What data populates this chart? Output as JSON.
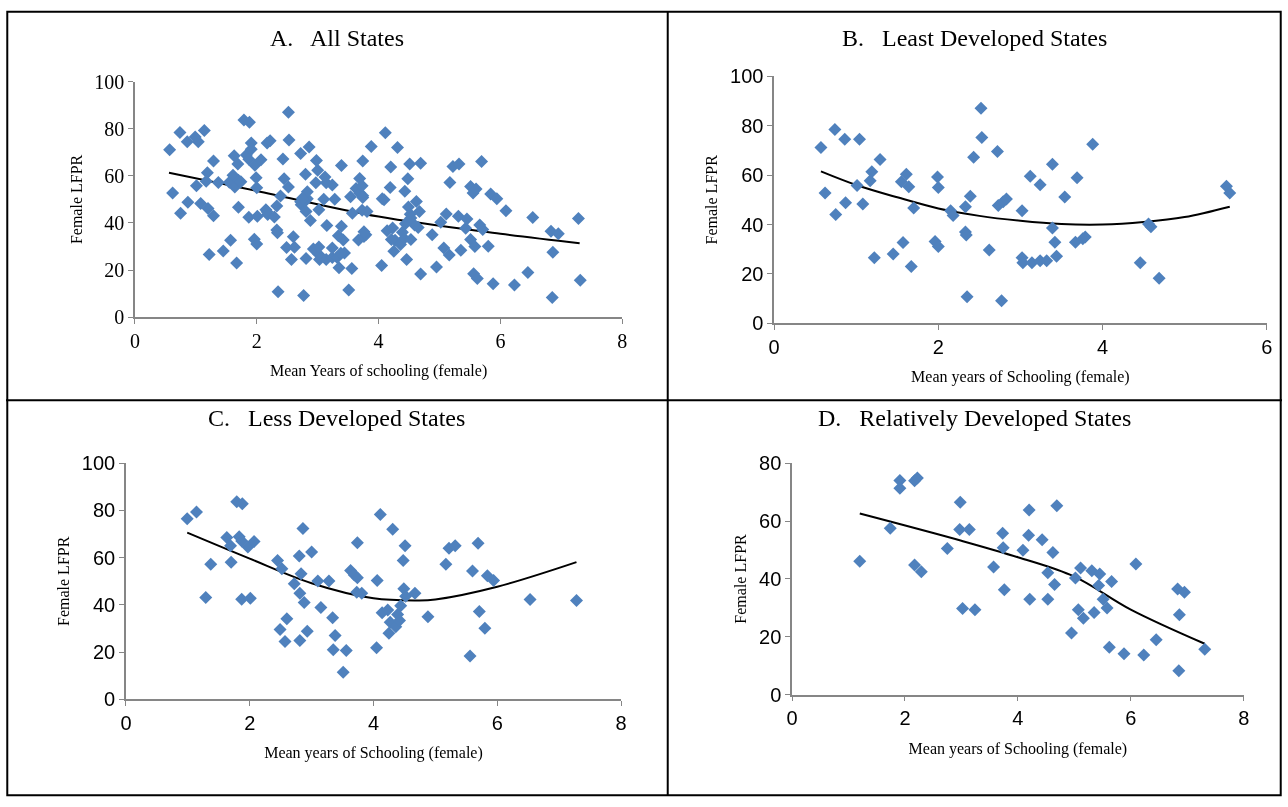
{
  "chart_data": [
    {
      "type": "scatter",
      "title": "A.   All States",
      "xlabel": "Mean Years of schooling (female)",
      "ylabel": "Female LFPR",
      "xlim": [
        0,
        8
      ],
      "xticks": [
        0,
        2,
        4,
        6,
        8
      ],
      "ylim": [
        0,
        100
      ],
      "yticks": [
        0,
        20,
        40,
        60,
        80,
        100
      ],
      "grid": false,
      "legend": false,
      "series": [
        {
          "color": "#4f81bd",
          "marker": "diamond",
          "x": [
            0.57,
            0.62,
            0.74,
            0.75,
            0.86,
            0.87,
            1.01,
            1.04,
            1.08,
            1.19,
            1.17,
            1.22,
            1.29,
            1.45,
            1.55,
            1.57,
            1.61,
            1.64,
            1.67,
            1.7,
            1.96,
            1.99,
            2.0,
            2.0,
            2.15,
            2.18,
            2.33,
            2.33,
            2.34,
            2.35,
            2.39,
            2.43,
            2.52,
            2.53,
            2.62,
            2.72,
            2.73,
            2.77,
            2.79,
            2.83,
            3.02,
            3.02,
            3.03,
            3.12,
            3.14,
            3.24,
            3.24,
            3.32,
            3.39,
            3.39,
            3.42,
            3.44,
            3.54,
            3.67,
            3.69,
            3.76,
            3.79,
            3.88,
            4.46,
            4.59,
            4.69,
            5.51,
            5.55,
            0.99,
            1.14,
            1.29,
            1.37,
            1.63,
            1.69,
            1.7,
            1.79,
            1.83,
            1.87,
            1.88,
            1.87,
            1.97,
            2.01,
            2.07,
            2.45,
            2.52,
            2.49,
            2.6,
            2.57,
            2.72,
            2.8,
            2.81,
            2.83,
            2.81,
            2.88,
            2.86,
            2.93,
            3.0,
            3.1,
            3.15,
            3.28,
            3.34,
            3.38,
            3.35,
            3.56,
            3.51,
            3.63,
            3.69,
            3.74,
            3.74,
            3.73,
            3.81,
            4.05,
            4.06,
            4.11,
            4.14,
            4.23,
            4.25,
            4.27,
            4.31,
            4.36,
            4.39,
            4.42,
            4.44,
            4.48,
            4.51,
            4.49,
            4.52,
            4.67,
            4.88,
            5.17,
            5.22,
            5.32,
            5.6,
            5.56,
            5.69,
            5.71,
            5.8,
            5.84,
            5.94,
            6.53,
            7.28,
            1.2,
            1.74,
            1.91,
            1.91,
            2.17,
            2.22,
            2.17,
            2.29,
            2.75,
            2.98,
            2.97,
            3.02,
            3.14,
            3.24,
            3.57,
            3.73,
            3.74,
            3.76,
            4.09,
            4.2,
            4.19,
            4.21,
            4.43,
            4.53,
            4.53,
            4.62,
            4.65,
            4.69,
            4.95,
            5.02,
            5.11,
            5.07,
            5.16,
            5.31,
            5.35,
            5.43,
            5.45,
            5.51,
            5.58,
            5.66,
            5.62,
            5.88,
            6.09,
            6.23,
            6.45,
            6.83,
            6.95,
            6.86,
            6.85,
            7.31
          ],
          "values": [
            71.1,
            52.7,
            78.4,
            44.1,
            74.5,
            48.8,
            55.8,
            74.5,
            48.3,
            61.3,
            57.7,
            26.6,
            66.3,
            28.1,
            57.3,
            32.7,
            60.3,
            55.3,
            23.0,
            46.7,
            33.1,
            59.2,
            55.0,
            31.1,
            45.6,
            43.6,
            47.2,
            37.0,
            35.8,
            10.8,
            51.4,
            67.2,
            87.0,
            75.2,
            29.7,
            69.5,
            47.7,
            9.2,
            49.2,
            50.3,
            45.6,
            26.6,
            24.5,
            59.5,
            24.5,
            56.1,
            25.3,
            25.3,
            64.4,
            38.6,
            32.8,
            27.2,
            51.1,
            32.8,
            58.9,
            34.2,
            35.0,
            72.5,
            24.5,
            39.1,
            18.3,
            55.5,
            52.7,
            76.5,
            79.3,
            43.1,
            57.2,
            68.5,
            65.0,
            58.1,
            83.7,
            68.9,
            42.4,
            82.8,
            67.1,
            64.5,
            42.8,
            66.8,
            58.8,
            55.3,
            29.6,
            34.1,
            24.5,
            49.0,
            60.7,
            24.9,
            53.2,
            44.9,
            41.0,
            72.3,
            28.9,
            62.4,
            50.1,
            38.9,
            50.1,
            34.6,
            27.1,
            21.0,
            20.7,
            11.5,
            54.6,
            52.7,
            51.5,
            66.3,
            45.4,
            44.9,
            21.9,
            50.3,
            78.3,
            36.7,
            37.9,
            28.0,
            32.7,
            72.0,
            30.8,
            36.0,
            33.4,
            39.7,
            58.8,
            65.0,
            46.8,
            43.7,
            44.9,
            35.0,
            57.2,
            64.0,
            65.0,
            54.4,
            18.4,
            66.1,
            37.2,
            30.1,
            52.3,
            50.3,
            42.3,
            41.9,
            46.1,
            57.5,
            74.0,
            71.3,
            73.9,
            74.9,
            44.8,
            42.5,
            50.5,
            66.5,
            57.1,
            29.8,
            57.1,
            29.4,
            44.1,
            55.8,
            50.8,
            36.3,
            49.9,
            63.8,
            55.1,
            33.0,
            53.5,
            42.1,
            33.0,
            49.1,
            38.1,
            65.3,
            21.3,
            40.3,
            43.8,
            29.4,
            26.4,
            42.8,
            28.4,
            37.7,
            41.7,
            33.0,
            30.0,
            39.1,
            16.4,
            14.2,
            45.2,
            13.7,
            19.0,
            36.5,
            35.4,
            27.6,
            8.3,
            15.7
          ]
        },
        {
          "type": "line",
          "color": "#000000",
          "x": [
            0.56,
            2,
            4,
            6,
            7.3
          ],
          "values": [
            61.3,
            53.6,
            42.7,
            35.4,
            31.4
          ]
        }
      ]
    },
    {
      "type": "scatter",
      "title": "B.   Least Developed States",
      "xlabel": "Mean years of Schooling (female)",
      "ylabel": "Female LFPR",
      "xlim": [
        0,
        6
      ],
      "xticks": [
        0,
        2,
        4,
        6
      ],
      "ylim": [
        0,
        100
      ],
      "yticks": [
        0,
        20,
        40,
        60,
        80,
        100
      ],
      "grid": false,
      "legend": false,
      "series": [
        {
          "color": "#4f81bd",
          "marker": "diamond",
          "x": [
            0.57,
            0.62,
            0.74,
            0.75,
            0.86,
            0.87,
            1.01,
            1.04,
            1.08,
            1.19,
            1.17,
            1.22,
            1.29,
            1.45,
            1.55,
            1.57,
            1.61,
            1.64,
            1.67,
            1.7,
            1.96,
            1.99,
            2.0,
            2.0,
            2.15,
            2.18,
            2.33,
            2.33,
            2.34,
            2.35,
            2.39,
            2.43,
            2.52,
            2.53,
            2.62,
            2.72,
            2.73,
            2.77,
            2.79,
            2.83,
            3.02,
            3.02,
            3.03,
            3.12,
            3.14,
            3.24,
            3.24,
            3.32,
            3.39,
            3.39,
            3.42,
            3.44,
            3.54,
            3.67,
            3.69,
            3.76,
            3.79,
            3.88,
            4.46,
            4.56,
            4.59,
            4.69,
            5.51,
            5.55
          ],
          "values": [
            71.1,
            52.7,
            78.4,
            44.1,
            74.5,
            48.8,
            55.8,
            74.5,
            48.3,
            61.3,
            57.7,
            26.6,
            66.3,
            28.1,
            57.3,
            32.7,
            60.3,
            55.3,
            23.0,
            46.7,
            33.1,
            59.2,
            55.0,
            31.1,
            45.6,
            43.6,
            47.2,
            37.0,
            35.8,
            10.8,
            51.4,
            67.2,
            87.0,
            75.2,
            29.7,
            69.5,
            47.7,
            9.2,
            49.2,
            50.3,
            45.6,
            26.6,
            24.5,
            59.5,
            24.5,
            56.1,
            25.3,
            25.3,
            64.4,
            38.6,
            32.8,
            27.2,
            51.1,
            32.8,
            58.9,
            34.2,
            35.0,
            72.5,
            24.5,
            40.2,
            39.1,
            18.3,
            55.5,
            52.7
          ]
        },
        {
          "type": "line",
          "color": "#000000",
          "x": [
            0.57,
            1,
            1.5,
            2,
            2.5,
            3,
            3.5,
            4,
            4.5,
            5,
            5.55
          ],
          "values": [
            61.5,
            56,
            51,
            46.5,
            43.5,
            41.5,
            40.2,
            40,
            41,
            43,
            47.2
          ]
        }
      ]
    },
    {
      "type": "scatter",
      "title": "C.   Less Developed States",
      "xlabel": "Mean years of Schooling (female)",
      "ylabel": "Female LFPR",
      "xlim": [
        0,
        8
      ],
      "xticks": [
        0,
        2,
        4,
        6,
        8
      ],
      "ylim": [
        0,
        100
      ],
      "yticks": [
        0,
        20,
        40,
        60,
        80,
        100
      ],
      "grid": false,
      "legend": false,
      "series": [
        {
          "color": "#4f81bd",
          "marker": "diamond",
          "x": [
            0.99,
            1.14,
            1.29,
            1.37,
            1.63,
            1.69,
            1.7,
            1.79,
            1.83,
            1.87,
            1.88,
            1.87,
            1.97,
            2.01,
            2.07,
            2.45,
            2.52,
            2.49,
            2.6,
            2.57,
            2.72,
            2.8,
            2.81,
            2.83,
            2.81,
            2.88,
            2.86,
            2.93,
            3.0,
            3.1,
            3.15,
            3.28,
            3.34,
            3.38,
            3.35,
            3.56,
            3.51,
            3.63,
            3.69,
            3.74,
            3.74,
            3.73,
            3.81,
            4.05,
            4.06,
            4.11,
            4.14,
            4.23,
            4.25,
            4.27,
            4.31,
            4.36,
            4.39,
            4.42,
            4.44,
            4.48,
            4.51,
            4.49,
            4.52,
            4.67,
            4.88,
            5.17,
            5.22,
            5.32,
            5.6,
            5.56,
            5.69,
            5.71,
            5.8,
            5.84,
            5.94,
            6.53,
            7.28
          ],
          "values": [
            76.5,
            79.3,
            43.1,
            57.2,
            68.5,
            65.0,
            58.1,
            83.7,
            68.9,
            42.4,
            82.8,
            67.1,
            64.5,
            42.8,
            66.8,
            58.8,
            55.3,
            29.6,
            34.1,
            24.5,
            49.0,
            60.7,
            24.9,
            53.2,
            44.9,
            41.0,
            72.3,
            28.9,
            62.4,
            50.1,
            38.9,
            50.1,
            34.6,
            27.1,
            21.0,
            20.7,
            11.5,
            54.6,
            52.7,
            51.5,
            66.3,
            45.4,
            44.9,
            21.9,
            50.3,
            78.3,
            36.7,
            37.9,
            28.0,
            32.7,
            72.0,
            30.8,
            36.0,
            33.4,
            39.7,
            58.8,
            65.0,
            46.8,
            43.7,
            44.9,
            35.0,
            57.2,
            64.0,
            65.0,
            54.4,
            18.4,
            66.1,
            37.2,
            30.1,
            52.3,
            50.3,
            42.3,
            41.9
          ]
        },
        {
          "type": "line",
          "color": "#000000",
          "x": [
            0.99,
            2,
            3,
            4,
            4.72,
            5,
            6,
            7.28
          ],
          "values": [
            70.6,
            59.6,
            49.2,
            42.8,
            41.9,
            42.3,
            47.7,
            58.1
          ]
        }
      ]
    },
    {
      "type": "scatter",
      "title": "D.   Relatively Developed States",
      "xlabel": "Mean years of Schooling (female)",
      "ylabel": "Female LFPR",
      "xlim": [
        0,
        8
      ],
      "xticks": [
        0,
        2,
        4,
        6,
        8
      ],
      "ylim": [
        0,
        80
      ],
      "yticks": [
        0,
        20,
        40,
        60,
        80
      ],
      "grid": false,
      "legend": false,
      "series": [
        {
          "color": "#4f81bd",
          "marker": "diamond",
          "x": [
            1.2,
            1.74,
            1.91,
            1.91,
            2.17,
            2.22,
            2.17,
            2.29,
            2.75,
            2.98,
            2.97,
            3.02,
            3.14,
            3.24,
            3.57,
            3.73,
            3.74,
            3.76,
            4.09,
            4.2,
            4.19,
            4.21,
            4.43,
            4.53,
            4.53,
            4.62,
            4.65,
            4.69,
            4.95,
            5.02,
            5.11,
            5.07,
            5.16,
            5.31,
            5.35,
            5.43,
            5.45,
            5.51,
            5.58,
            5.66,
            5.62,
            5.88,
            6.09,
            6.23,
            6.45,
            6.83,
            6.95,
            6.86,
            6.85,
            7.31
          ],
          "values": [
            46.1,
            57.5,
            74.0,
            71.3,
            73.9,
            74.9,
            44.8,
            42.5,
            50.5,
            66.5,
            57.1,
            29.8,
            57.1,
            29.4,
            44.1,
            55.8,
            50.8,
            36.3,
            49.9,
            63.8,
            55.1,
            33.0,
            53.5,
            42.1,
            33.0,
            49.1,
            38.1,
            65.3,
            21.3,
            40.3,
            43.8,
            29.4,
            26.4,
            42.8,
            28.4,
            37.7,
            41.7,
            33.0,
            30.0,
            39.1,
            16.4,
            14.2,
            45.2,
            13.7,
            19.0,
            36.5,
            35.4,
            27.6,
            8.3,
            15.7
          ]
        },
        {
          "type": "line",
          "color": "#000000",
          "x": [
            1.2,
            3,
            4,
            5,
            6,
            7.31
          ],
          "values": [
            62.6,
            53.2,
            47.5,
            40.8,
            29.4,
            17.6
          ]
        }
      ]
    }
  ]
}
